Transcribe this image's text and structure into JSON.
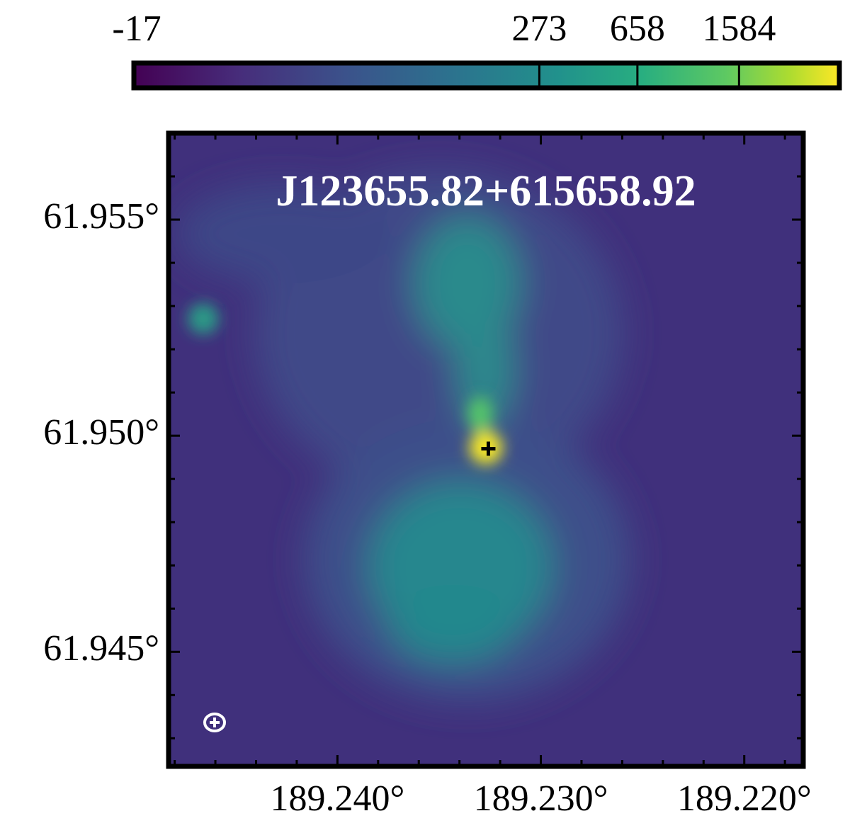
{
  "chart_data": {
    "type": "image",
    "title": "J123655.82+615658.92",
    "xlim": [
      189.2483,
      189.2171
    ],
    "ylim": [
      61.94235,
      61.957
    ],
    "xticks": [
      {
        "value": 189.24,
        "label": "189.240°"
      },
      {
        "value": 189.23,
        "label": "189.230°"
      },
      {
        "value": 189.22,
        "label": "189.220°"
      }
    ],
    "yticks": [
      {
        "value": 61.945,
        "label": "61.945°"
      },
      {
        "value": 61.95,
        "label": "61.950°"
      },
      {
        "value": 61.955,
        "label": "61.955°"
      }
    ],
    "xminorticks": [
      189.248,
      189.246,
      189.244,
      189.242,
      189.238,
      189.236,
      189.234,
      189.232,
      189.228,
      189.226,
      189.224,
      189.222,
      189.218
    ],
    "yminorticks": [
      61.943,
      61.944,
      61.946,
      61.947,
      61.948,
      61.949,
      61.951,
      61.952,
      61.953,
      61.954,
      61.956
    ],
    "marker": {
      "x": 189.23258,
      "y": 61.9497
    },
    "colorbar": {
      "clim": [
        -17,
        3633
      ],
      "stretch": "log",
      "stretch_a": 360,
      "ticks": [
        -17,
        273,
        658,
        1584
      ]
    }
  }
}
